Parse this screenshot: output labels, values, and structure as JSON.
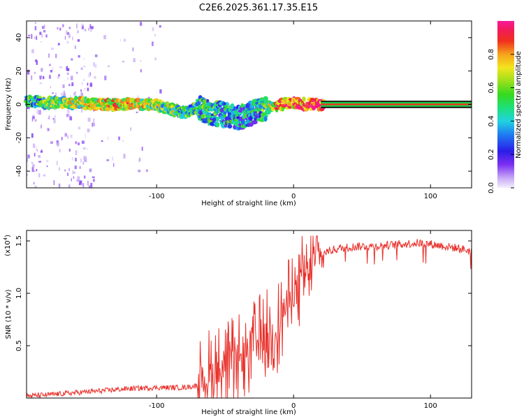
{
  "title": "C2E6.2025.361.17.35.E15",
  "chart_data": [
    {
      "type": "heatmap",
      "name": "spectrogram",
      "xlabel": "Height of straight line (km)",
      "ylabel": "Frequency (Hz)",
      "xlim": [
        -195,
        130
      ],
      "ylim": [
        -50,
        50
      ],
      "x_ticks": [
        -100,
        0,
        100
      ],
      "y_ticks": [
        -40,
        -20,
        0,
        20,
        40
      ],
      "colorbar": {
        "label": "Normalized spectral amplitude",
        "range": [
          0.0,
          1.0
        ],
        "ticks": [
          "0.0",
          "0.2",
          "0.4",
          "0.6",
          "0.8"
        ],
        "tick_values": [
          0.0,
          0.2,
          0.4,
          0.6,
          0.8
        ]
      },
      "ridge": {
        "x": [
          -195,
          -180,
          -160,
          -140,
          -120,
          -100,
          -90,
          -80,
          -70,
          -60,
          -50,
          -40,
          -30,
          -20,
          -10,
          0,
          10,
          20,
          130
        ],
        "freq_center": [
          2,
          1,
          1,
          0,
          0,
          0,
          -3,
          -5,
          -2,
          -5,
          -6,
          -8,
          -5,
          -2,
          0,
          1,
          0,
          0,
          0
        ],
        "amplitude": [
          0.4,
          0.5,
          0.6,
          0.65,
          0.7,
          0.55,
          0.55,
          0.5,
          0.45,
          0.4,
          0.4,
          0.35,
          0.35,
          0.5,
          0.8,
          0.85,
          0.9,
          0.95,
          1.0
        ]
      },
      "noise_region": [
        -195,
        -95
      ]
    },
    {
      "type": "line",
      "name": "snr",
      "xlabel": "Height of straight line (km)",
      "ylabel": "SNR (10 * v/v)",
      "y_multiplier": "(x10",
      "y_multiplier_exp": "4",
      "y_multiplier_close": ")",
      "xlim": [
        -195,
        130
      ],
      "ylim": [
        0,
        1.6
      ],
      "x_ticks": [
        -100,
        0,
        100
      ],
      "y_ticks": [
        0.5,
        1.0,
        1.5
      ],
      "y_tick_labels": [
        "0.5",
        "1.0",
        "1.5"
      ],
      "color": "#e8302a",
      "series": [
        {
          "name": "SNR",
          "x": [
            -195,
            -180,
            -160,
            -140,
            -120,
            -100,
            -90,
            -80,
            -70,
            -65,
            -60,
            -50,
            -40,
            -30,
            -25,
            -20,
            -15,
            -10,
            -5,
            0,
            5,
            10,
            15,
            20,
            30,
            40,
            50,
            60,
            70,
            80,
            90,
            100,
            110,
            120,
            130
          ],
          "y": [
            0.02,
            0.03,
            0.05,
            0.07,
            0.09,
            0.1,
            0.1,
            0.1,
            0.12,
            0.2,
            0.25,
            0.3,
            0.35,
            0.5,
            0.55,
            0.6,
            0.65,
            0.7,
            0.9,
            1.0,
            1.1,
            1.2,
            1.3,
            1.38,
            1.42,
            1.44,
            1.45,
            1.45,
            1.46,
            1.47,
            1.48,
            1.47,
            1.45,
            1.43,
            1.4
          ]
        }
      ]
    }
  ]
}
